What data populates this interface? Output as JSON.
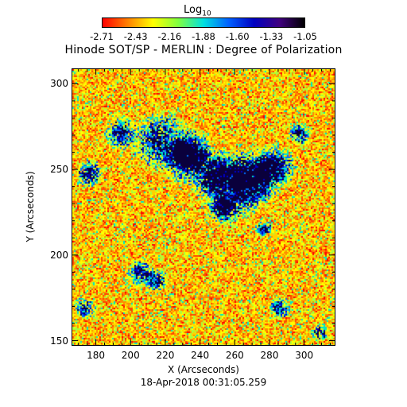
{
  "colorbar": {
    "label_base": "Log",
    "label_sub": "10",
    "ticks": [
      "-2.71",
      "-2.43",
      "-2.16",
      "-1.88",
      "-1.60",
      "-1.33",
      "-1.05"
    ],
    "gradient": [
      "#ff0000",
      "#ff8000",
      "#ffff00",
      "#80ff40",
      "#00e0e0",
      "#0060ff",
      "#0000c0",
      "#400080",
      "#000000"
    ]
  },
  "title": "Hinode SOT/SP - MERLIN : Degree of Polarization",
  "x_axis": {
    "label": "X (Arcseconds)",
    "ticks": [
      "180",
      "200",
      "220",
      "240",
      "260",
      "280",
      "300"
    ],
    "range": [
      166,
      318
    ]
  },
  "y_axis": {
    "label": "Y (Arcseconds)",
    "ticks": [
      "150",
      "200",
      "250",
      "300"
    ],
    "range": [
      147,
      309
    ]
  },
  "timestamp": "18-Apr-2018 00:31:05.259"
}
